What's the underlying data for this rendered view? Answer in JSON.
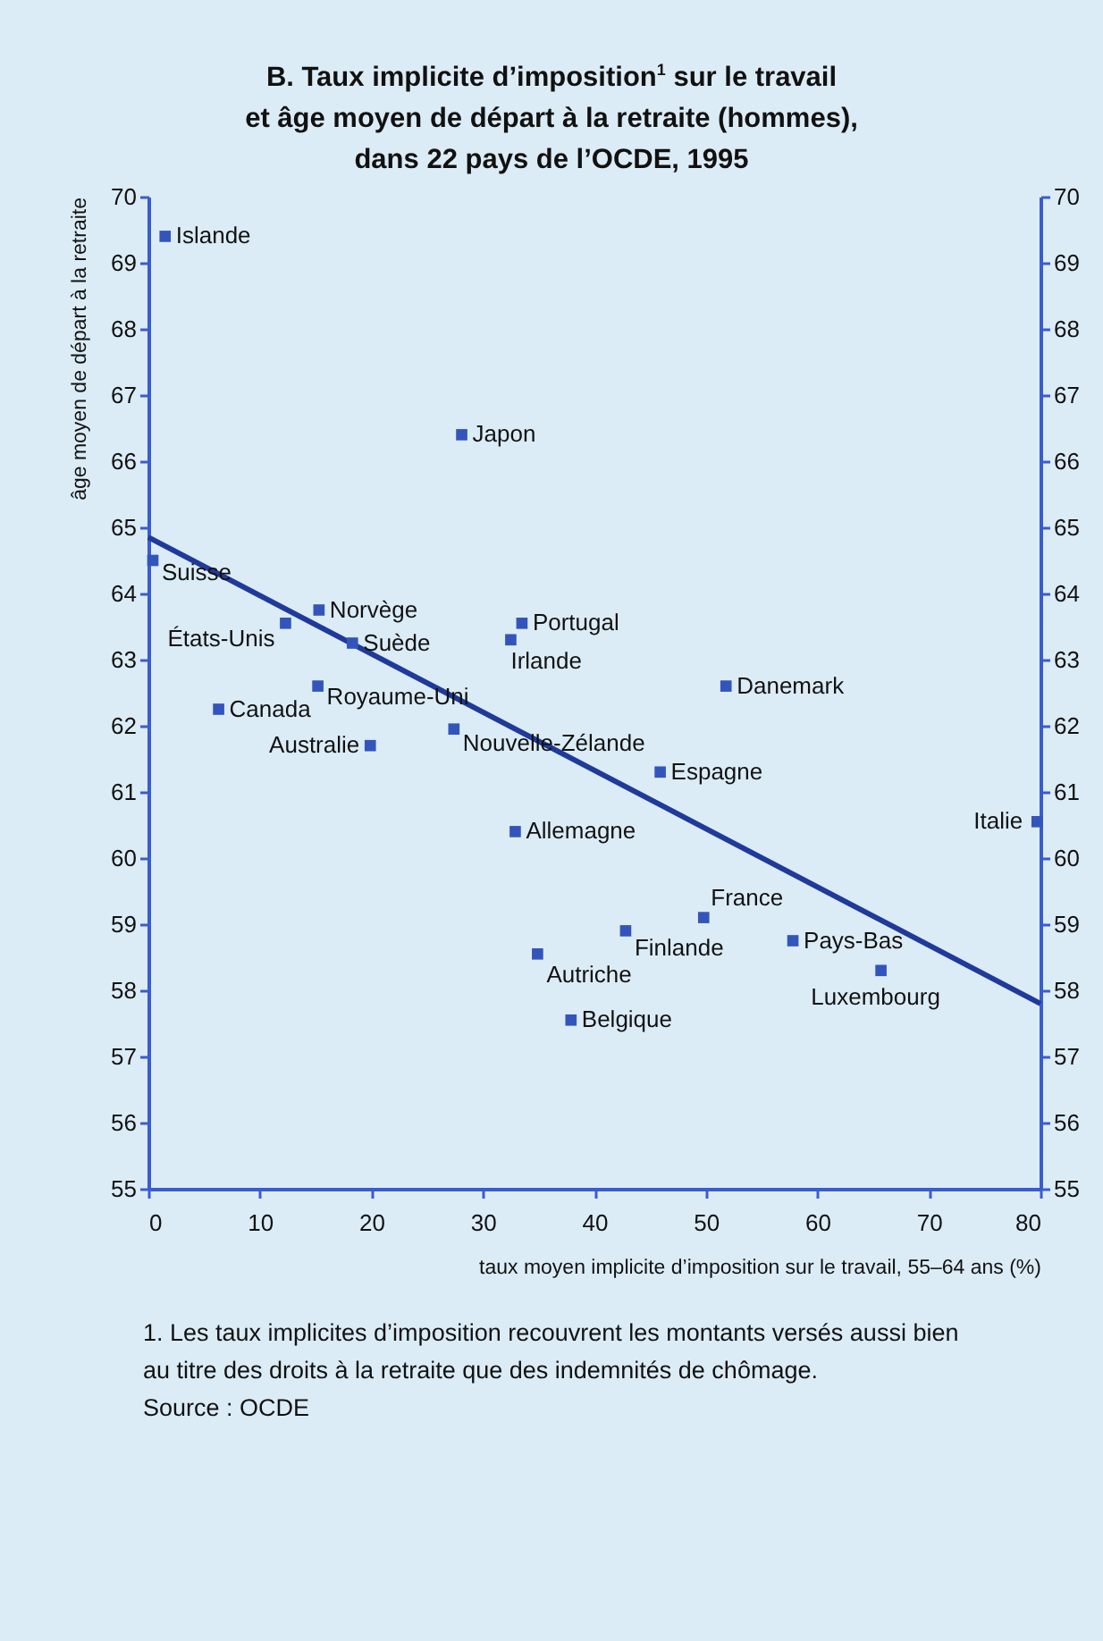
{
  "chart_data": {
    "type": "scatter",
    "title": "B. Taux implicite d’imposition$^{1}$ sur le travail\net âge moyen de départ à la retraite (hommes),\ndans 22 pays de l’OCDE, 1995",
    "xlabel": "taux moyen implicite d’imposition sur le travail, 55–64 ans (%)",
    "ylabel": "âge moyen de départ à la retraite",
    "xlim": [
      0,
      80
    ],
    "xticks": [
      0,
      10,
      20,
      30,
      40,
      50,
      60,
      70,
      80
    ],
    "ylim": [
      55,
      70
    ],
    "yticks": [
      55,
      56,
      57,
      58,
      59,
      60,
      61,
      62,
      63,
      64,
      65,
      66,
      67,
      68,
      69,
      70
    ],
    "y2lim": [
      55,
      70
    ],
    "y2ticks": [
      55,
      56,
      57,
      58,
      59,
      60,
      61,
      62,
      63,
      64,
      65,
      66,
      67,
      68,
      69,
      70
    ],
    "grid": false,
    "marker": "square",
    "series": [
      {
        "type": "scatter",
        "color": "#3355bb",
        "x": [
          1.5,
          0.4,
          28.1,
          15.3,
          12.3,
          18.3,
          33.5,
          32.5,
          15.2,
          6.3,
          19.9,
          27.4,
          51.8,
          45.9,
          32.9,
          79.7,
          49.8,
          42.8,
          57.8,
          34.9,
          65.7,
          37.9
        ],
        "values": [
          69.4,
          64.5,
          66.4,
          63.75,
          63.55,
          63.25,
          63.55,
          63.3,
          62.6,
          62.25,
          61.7,
          61.95,
          62.6,
          61.3,
          60.4,
          60.55,
          59.1,
          58.9,
          58.75,
          58.55,
          58.3,
          57.55
        ]
      },
      {
        "type": "line",
        "color": "#1f3a9a",
        "line_style": "solid",
        "marker": "none",
        "x": [
          0,
          80
        ],
        "values": [
          64.85,
          57.8
        ]
      }
    ],
    "annotations": [
      {
        "text": "Islande",
        "x": 1.5,
        "y": 69.4
      },
      {
        "text": "Suisse",
        "x": 0.4,
        "y": 64.5
      },
      {
        "text": "Japon",
        "x": 28.1,
        "y": 66.4
      },
      {
        "text": "Norvège",
        "x": 15.3,
        "y": 63.75
      },
      {
        "text": "États-Unis",
        "x": 12.3,
        "y": 63.55
      },
      {
        "text": "Suède",
        "x": 18.3,
        "y": 63.25
      },
      {
        "text": "Portugal",
        "x": 33.5,
        "y": 63.55
      },
      {
        "text": "Irlande",
        "x": 32.5,
        "y": 63.3
      },
      {
        "text": "Royaume-Uni",
        "x": 15.2,
        "y": 62.6
      },
      {
        "text": "Canada",
        "x": 6.3,
        "y": 62.25
      },
      {
        "text": "Australie",
        "x": 19.9,
        "y": 61.7
      },
      {
        "text": "Nouvelle-Zélande",
        "x": 27.4,
        "y": 61.95
      },
      {
        "text": "Danemark",
        "x": 51.8,
        "y": 62.6
      },
      {
        "text": "Espagne",
        "x": 45.9,
        "y": 61.3
      },
      {
        "text": "Allemagne",
        "x": 32.9,
        "y": 60.4
      },
      {
        "text": "Italie",
        "x": 79.7,
        "y": 60.55
      },
      {
        "text": "France",
        "x": 49.8,
        "y": 59.1
      },
      {
        "text": "Finlande",
        "x": 42.8,
        "y": 58.9
      },
      {
        "text": "Pays-Bas",
        "x": 57.8,
        "y": 58.75
      },
      {
        "text": "Autriche",
        "x": 34.9,
        "y": 58.55
      },
      {
        "text": "Luxembourg",
        "x": 65.7,
        "y": 58.3
      },
      {
        "text": "Belgique",
        "x": 37.9,
        "y": 57.55
      },
      "1. Les taux implicites d’imposition recouvrent les montants versés aussi bien au titre des droits à la retraite que des indemnités de chômage.",
      "Source : OCDE"
    ]
  }
}
